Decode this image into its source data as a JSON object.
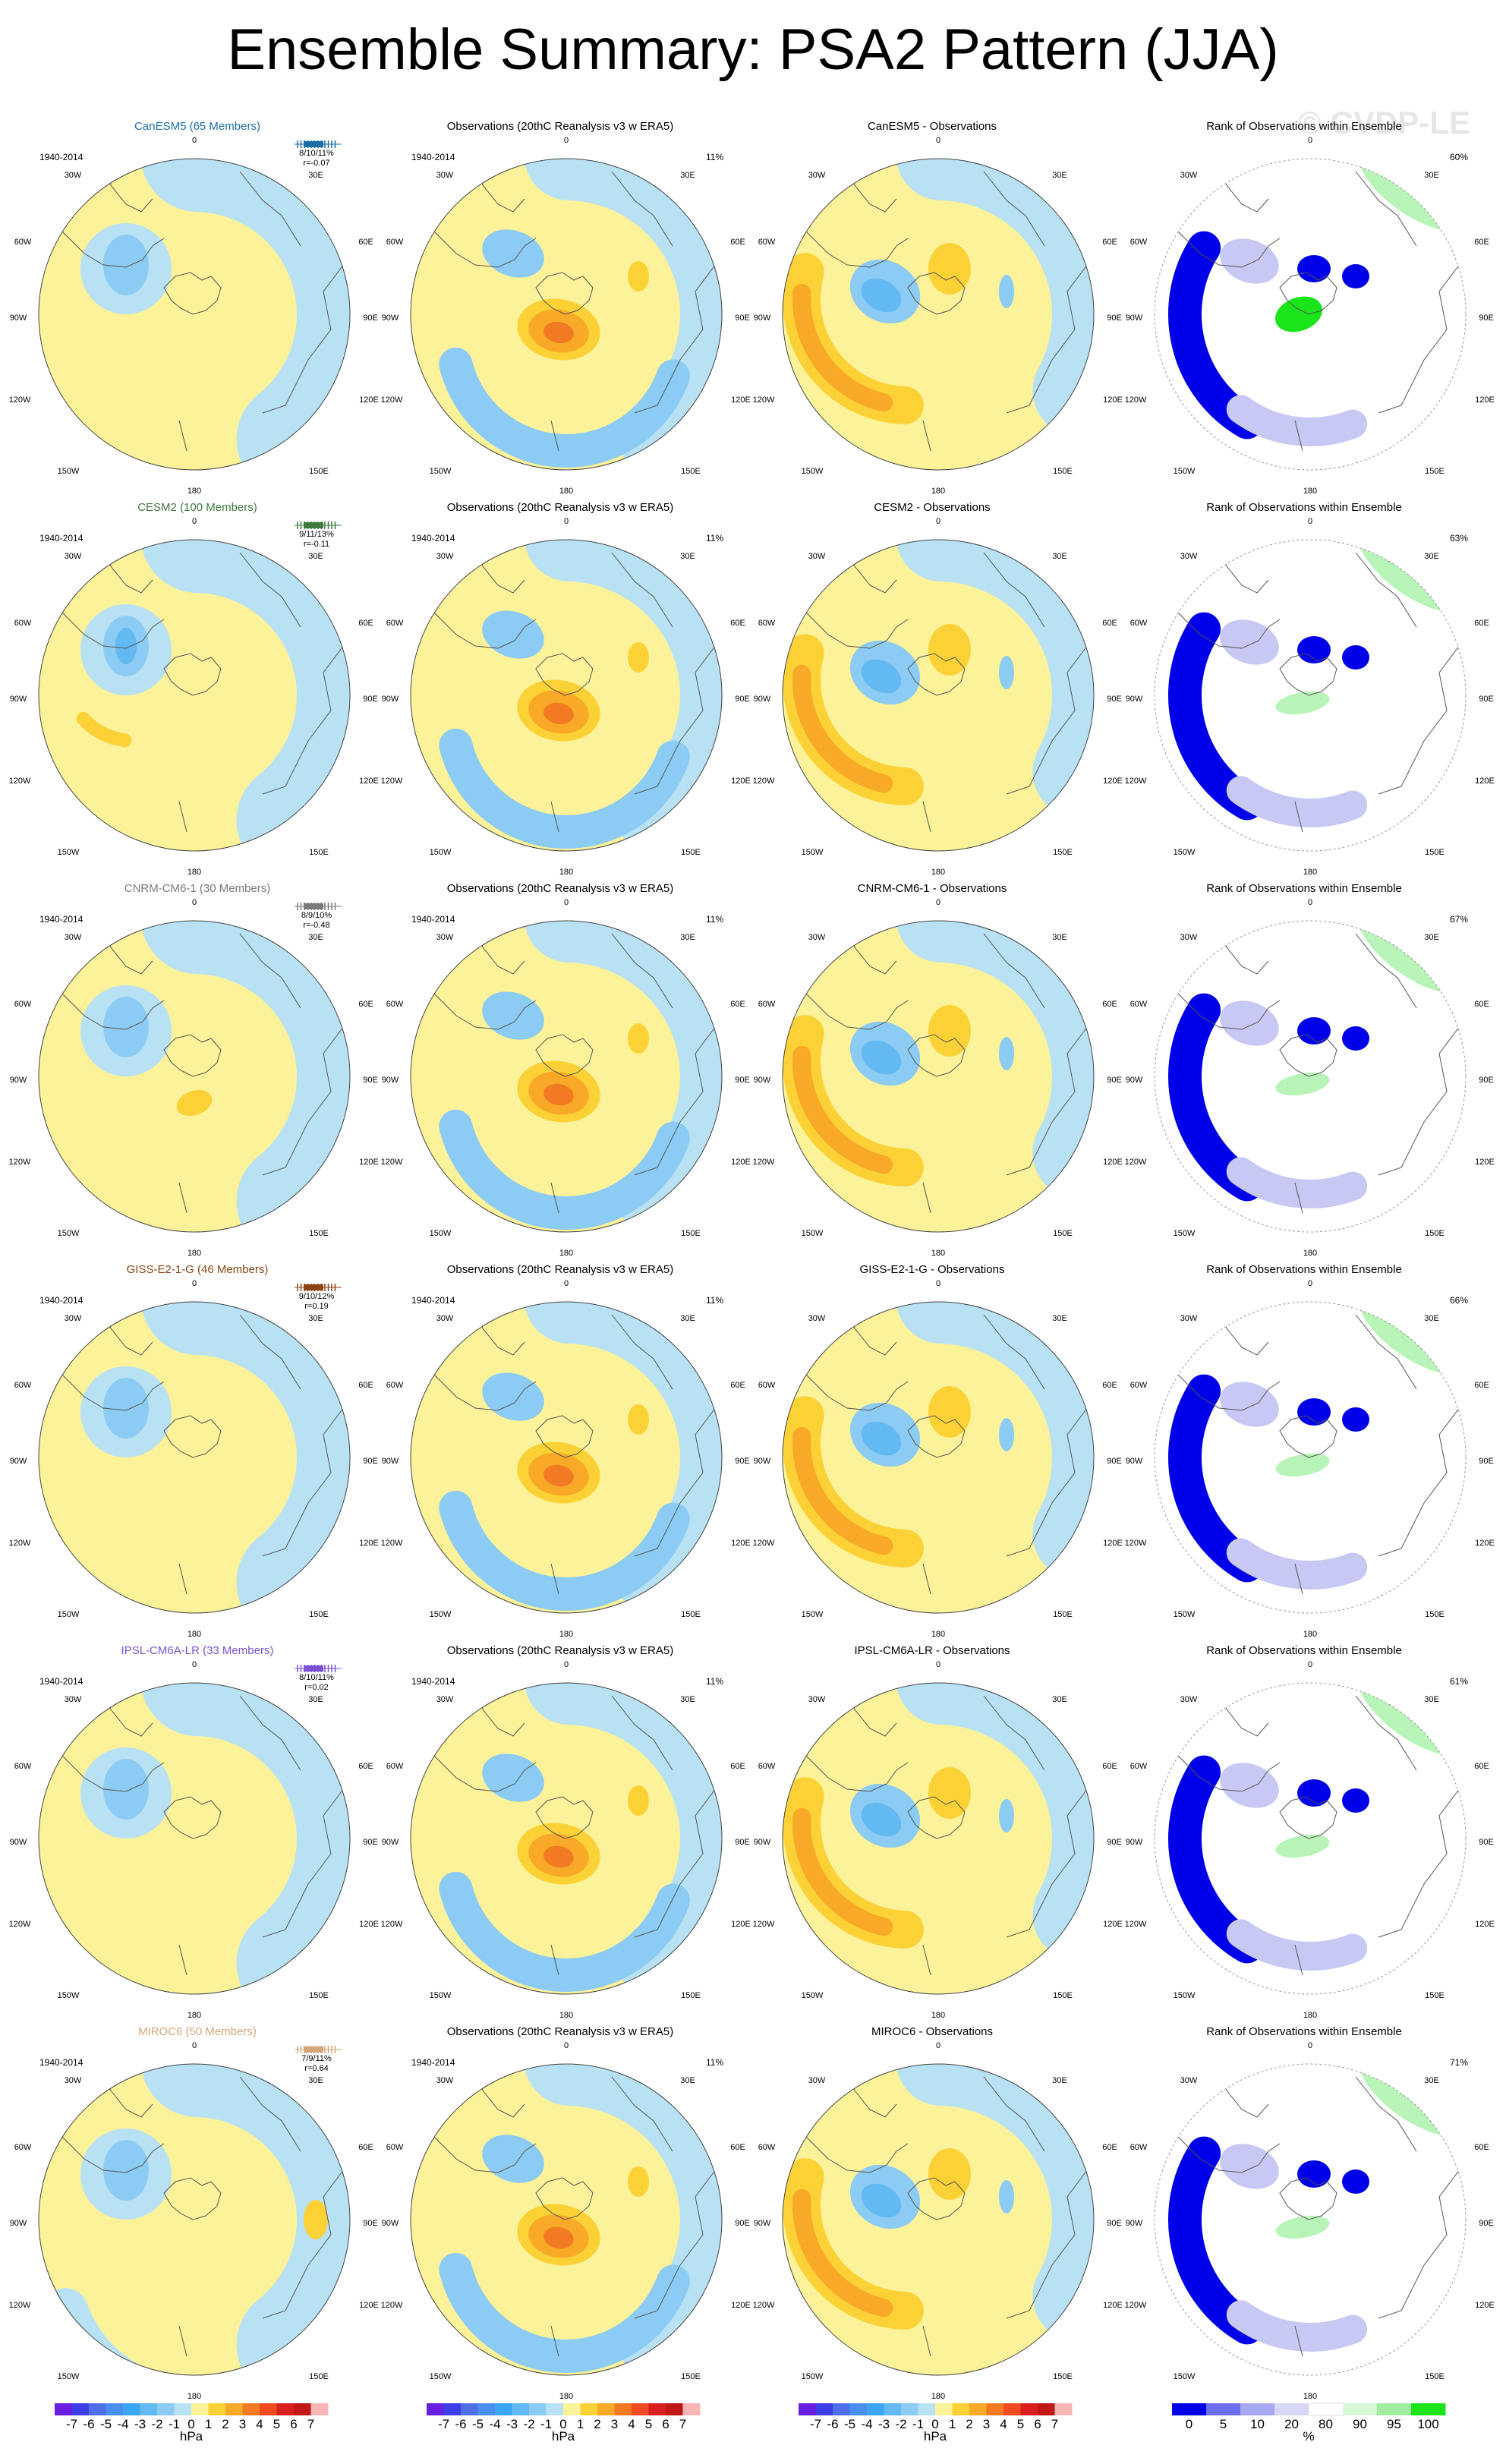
{
  "page": {
    "title": "Ensemble Summary: PSA2 Pattern (JJA)",
    "watermark": "© CVDP-LE",
    "period": "1940-2014"
  },
  "map_labels": {
    "top": "0",
    "upper_left": "30W",
    "upper_right": "30E",
    "mid_left": "60W",
    "mid_right": "60E",
    "left": "90W",
    "right": "90E",
    "lower_left": "120W",
    "lower_right": "120E",
    "bottom_left": "150W",
    "bottom_right": "150E",
    "bottom": "180"
  },
  "colors": {
    "neg3": "#63b9f1",
    "neg2": "#8ccbf3",
    "neg1": "#b8e1f4",
    "pos1": "#fbf29a",
    "pos2": "#fbd136",
    "pos3": "#f8a927",
    "pos4": "#f27a22",
    "rank_low": "#0000e8",
    "rank_mid": "#c8c8f4",
    "rank_green": "#1be41b",
    "rank_lgreen": "#b8f4b8"
  },
  "rows": [
    {
      "model": "CanESM5 (65 Members)",
      "model_color": "#1b6ea8",
      "stats_pct": "8/10/11%",
      "stats_r": "r=-0.07",
      "obs_title": "Observations (20thC Reanalysis v3 w ERA5)",
      "obs_pct": "11%",
      "diff_title": "CanESM5 - Observations",
      "rank_title": "Rank of Observations within Ensemble",
      "rank_pct": "60%"
    },
    {
      "model": "CESM2 (100 Members)",
      "model_color": "#3e7a3e",
      "stats_pct": "9/11/13%",
      "stats_r": "r=-0.11",
      "obs_title": "Observations (20thC Reanalysis v3 w ERA5)",
      "obs_pct": "11%",
      "diff_title": "CESM2 - Observations",
      "rank_title": "Rank of Observations within Ensemble",
      "rank_pct": "63%"
    },
    {
      "model": "CNRM-CM6-1 (30 Members)",
      "model_color": "#7a7a7a",
      "stats_pct": "8/9/10%",
      "stats_r": "r=-0.48",
      "obs_title": "Observations (20thC Reanalysis v3 w ERA5)",
      "obs_pct": "11%",
      "diff_title": "CNRM-CM6-1 - Observations",
      "rank_title": "Rank of Observations within Ensemble",
      "rank_pct": "67%"
    },
    {
      "model": "GISS-E2-1-G (46 Members)",
      "model_color": "#8b4513",
      "stats_pct": "9/10/12%",
      "stats_r": "r=0.19",
      "obs_title": "Observations (20thC Reanalysis v3 w ERA5)",
      "obs_pct": "11%",
      "diff_title": "GISS-E2-1-G - Observations",
      "rank_title": "Rank of Observations within Ensemble",
      "rank_pct": "66%"
    },
    {
      "model": "IPSL-CM6A-LR (33 Members)",
      "model_color": "#7b52d3",
      "stats_pct": "8/10/11%",
      "stats_r": "r=0.02",
      "obs_title": "Observations (20thC Reanalysis v3 w ERA5)",
      "obs_pct": "11%",
      "diff_title": "IPSL-CM6A-LR - Observations",
      "rank_title": "Rank of Observations within Ensemble",
      "rank_pct": "61%"
    },
    {
      "model": "MIROC6 (50 Members)",
      "model_color": "#d2a679",
      "stats_pct": "7/9/11%",
      "stats_r": "r=0.64",
      "obs_title": "Observations (20thC Reanalysis v3 w ERA5)",
      "obs_pct": "11%",
      "diff_title": "MIROC6 - Observations",
      "rank_title": "Rank of Observations within Ensemble",
      "rank_pct": "71%"
    }
  ],
  "colorbars": {
    "hpa_ticks": [
      "-7",
      "-6",
      "-5",
      "-4",
      "-3",
      "-2",
      "-1",
      "0",
      "1",
      "2",
      "3",
      "4",
      "5",
      "6",
      "7"
    ],
    "hpa_units": "hPa",
    "hpa_colors": [
      "#6a1ee0",
      "#3e3ee8",
      "#4e6fe8",
      "#4a8ef0",
      "#3ca6f4",
      "#63b9f1",
      "#8ccbf3",
      "#b8e1f4",
      "#fbf29a",
      "#fbd136",
      "#f8a927",
      "#f27a22",
      "#ef4a20",
      "#d91f1f",
      "#c01818",
      "#f7b5b5"
    ],
    "rank_ticks": [
      "0",
      "5",
      "10",
      "20",
      "80",
      "90",
      "95",
      "100"
    ],
    "rank_units": "%",
    "rank_colors": [
      "#0000e8",
      "#6e6ef0",
      "#a8a8f2",
      "#d8d8f6",
      "#ffffff",
      "#d8f8d8",
      "#a0eca0",
      "#1be41b"
    ]
  }
}
